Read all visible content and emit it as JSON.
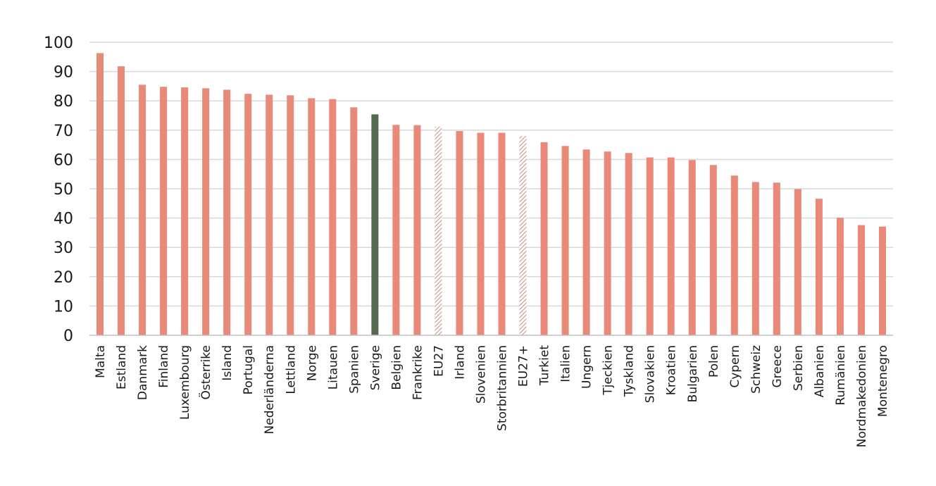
{
  "chart_data": {
    "type": "bar",
    "title": "",
    "xlabel": "",
    "ylabel": "",
    "ylim": [
      0,
      100
    ],
    "yticks": [
      0,
      10,
      20,
      30,
      40,
      50,
      60,
      70,
      80,
      90,
      100
    ],
    "grid": true,
    "legend": "none",
    "categories": [
      "Malta",
      "Estland",
      "Danmark",
      "Finland",
      "Luxembourg",
      "Österrike",
      "Island",
      "Portugal",
      "Nederländerna",
      "Lettland",
      "Norge",
      "Litauen",
      "Spanien",
      "Sverige",
      "Belgien",
      "Frankrike",
      "EU27",
      "Irland",
      "Slovenien",
      "Storbritannien",
      "EU27+",
      "Turkiet",
      "Italien",
      "Ungern",
      "Tjeckien",
      "Tyskland",
      "Slovakien",
      "Kroatien",
      "Bulgarien",
      "Polen",
      "Cypern",
      "Schweiz",
      "Greece",
      "Serbien",
      "Albanien",
      "Rumänien",
      "Nordmakedonien",
      "Montenegro"
    ],
    "values": [
      96.3,
      91.8,
      85.5,
      84.8,
      84.6,
      84.3,
      83.8,
      82.4,
      82.1,
      81.9,
      80.9,
      80.6,
      77.8,
      75.4,
      71.8,
      71.7,
      71.2,
      69.7,
      69.1,
      69.1,
      68.0,
      65.9,
      64.6,
      63.4,
      62.7,
      62.2,
      60.7,
      60.7,
      59.8,
      58.1,
      54.5,
      52.3,
      52.1,
      49.9,
      46.6,
      40.1,
      37.6,
      37.1
    ],
    "bar_styles": [
      "normal",
      "normal",
      "normal",
      "normal",
      "normal",
      "normal",
      "normal",
      "normal",
      "normal",
      "normal",
      "normal",
      "normal",
      "normal",
      "highlight",
      "normal",
      "normal",
      "hatched",
      "normal",
      "normal",
      "normal",
      "hatched",
      "normal",
      "normal",
      "normal",
      "normal",
      "normal",
      "normal",
      "normal",
      "normal",
      "normal",
      "normal",
      "normal",
      "normal",
      "normal",
      "normal",
      "normal",
      "normal",
      "normal"
    ],
    "colors": {
      "bar": "#e8897a",
      "highlight": "#536a4f",
      "hatched": "#c98b7e",
      "grid": "#d9d9d9",
      "axis": "#bfbfbf"
    }
  }
}
